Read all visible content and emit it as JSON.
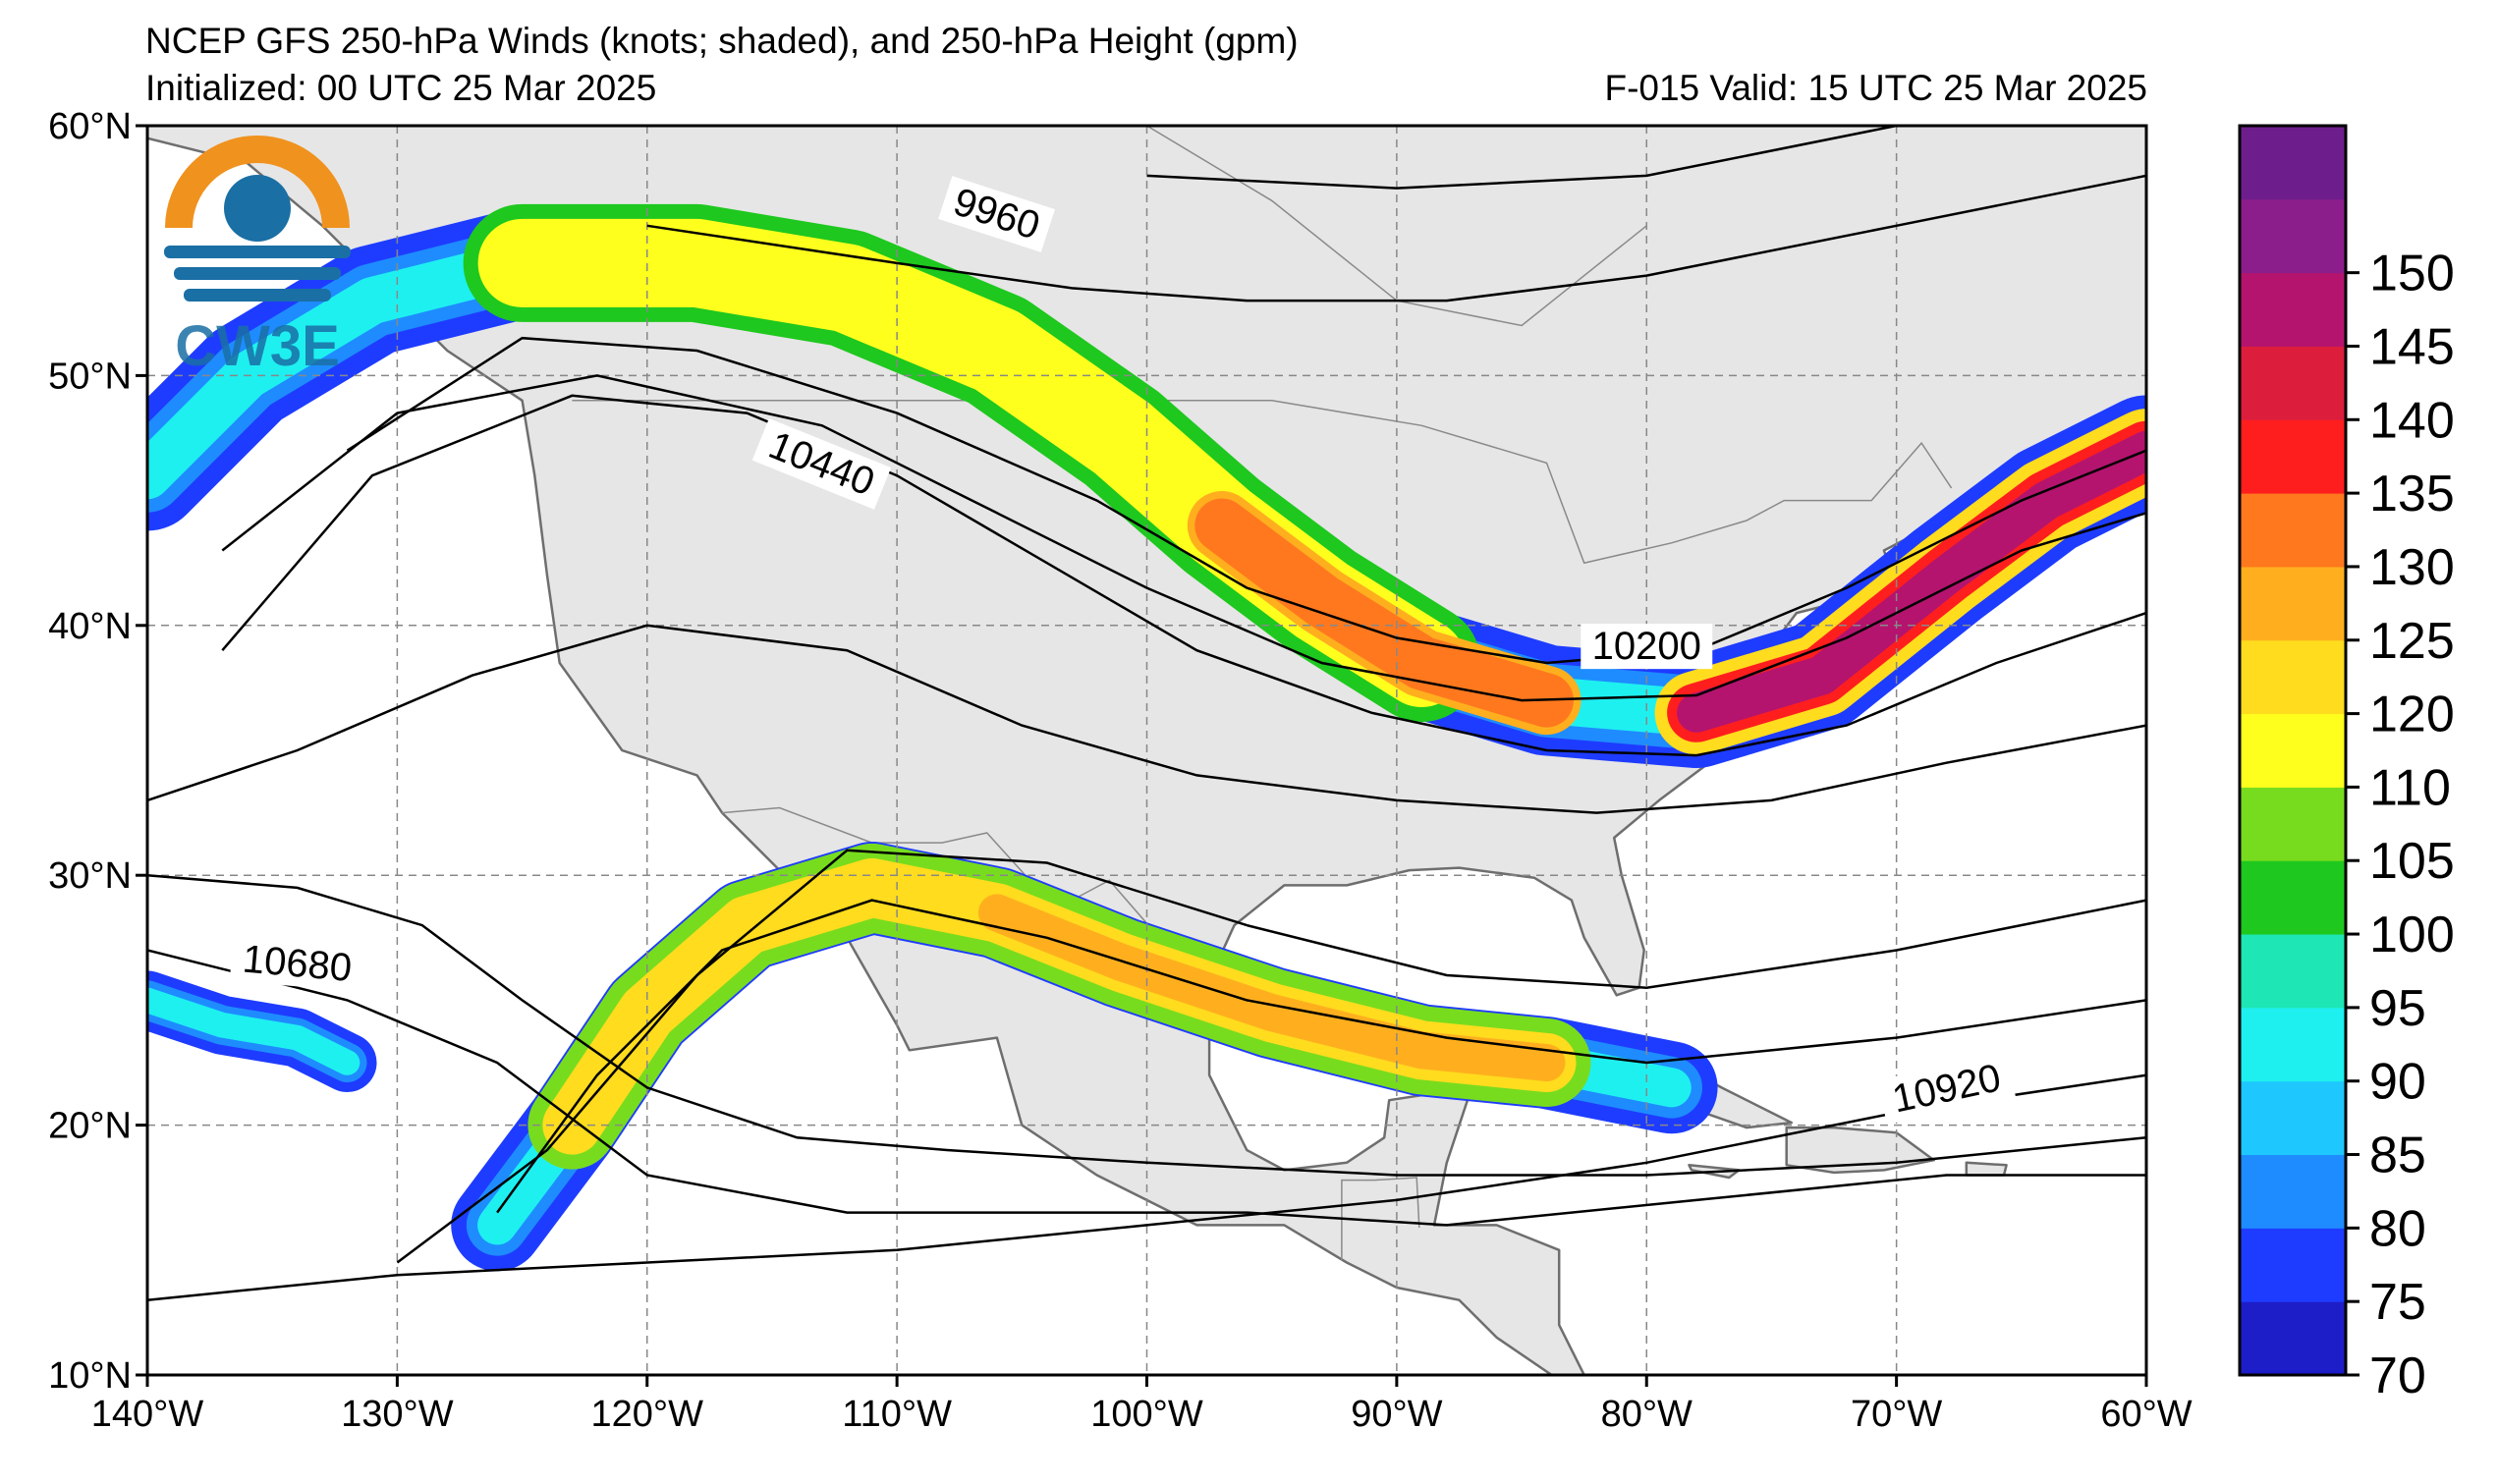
{
  "header": {
    "title": "NCEP GFS 250-hPa Winds (knots; shaded), and 250-hPa Height (gpm)",
    "initialized": "Initialized: 00 UTC 25 Mar 2025",
    "valid": "F-015  Valid: 15 UTC 25 Mar 2025"
  },
  "logo": {
    "text": "CW3E",
    "icon": "cw3e-logo-icon",
    "colors": {
      "orange": "#f0921e",
      "blue": "#1a6fa5"
    }
  },
  "map": {
    "lon_range": [
      -140,
      -60
    ],
    "lat_range": [
      10,
      60
    ],
    "grid_lines": true,
    "land_color": "#e6e6e6",
    "ocean_color": "#ffffff",
    "x_ticks": [
      "140°W",
      "130°W",
      "120°W",
      "110°W",
      "100°W",
      "90°W",
      "80°W",
      "70°W",
      "60°W"
    ],
    "y_ticks": [
      "60°N",
      "50°N",
      "40°N",
      "30°N",
      "20°N",
      "10°N"
    ]
  },
  "colorbar": {
    "levels": [
      70,
      75,
      80,
      85,
      90,
      95,
      100,
      105,
      110,
      120,
      125,
      130,
      135,
      140,
      145,
      150
    ],
    "labels": [
      "70",
      "75",
      "80",
      "85",
      "90",
      "95",
      "100",
      "105",
      "110",
      "120",
      "125",
      "130",
      "135",
      "140",
      "145",
      "150"
    ],
    "colors": [
      "#1e1ec8",
      "#1e3cff",
      "#1e8cff",
      "#1ec8ff",
      "#1ef0f0",
      "#1ee6b4",
      "#1ec81e",
      "#78dc1e",
      "#ffff1e",
      "#ffdc1e",
      "#ffaf1e",
      "#ff781e",
      "#ff1e1e",
      "#dc1e3c",
      "#b4146e",
      "#8c1e8c",
      "#6e1e8c"
    ]
  },
  "height_contours": [
    {
      "label": "9960",
      "value": 9960
    },
    {
      "label": "10200",
      "value": 10200
    },
    {
      "label": "10440",
      "value": 10440
    },
    {
      "label": "10680",
      "value": 10680
    },
    {
      "label": "10920",
      "value": 10920
    }
  ]
}
